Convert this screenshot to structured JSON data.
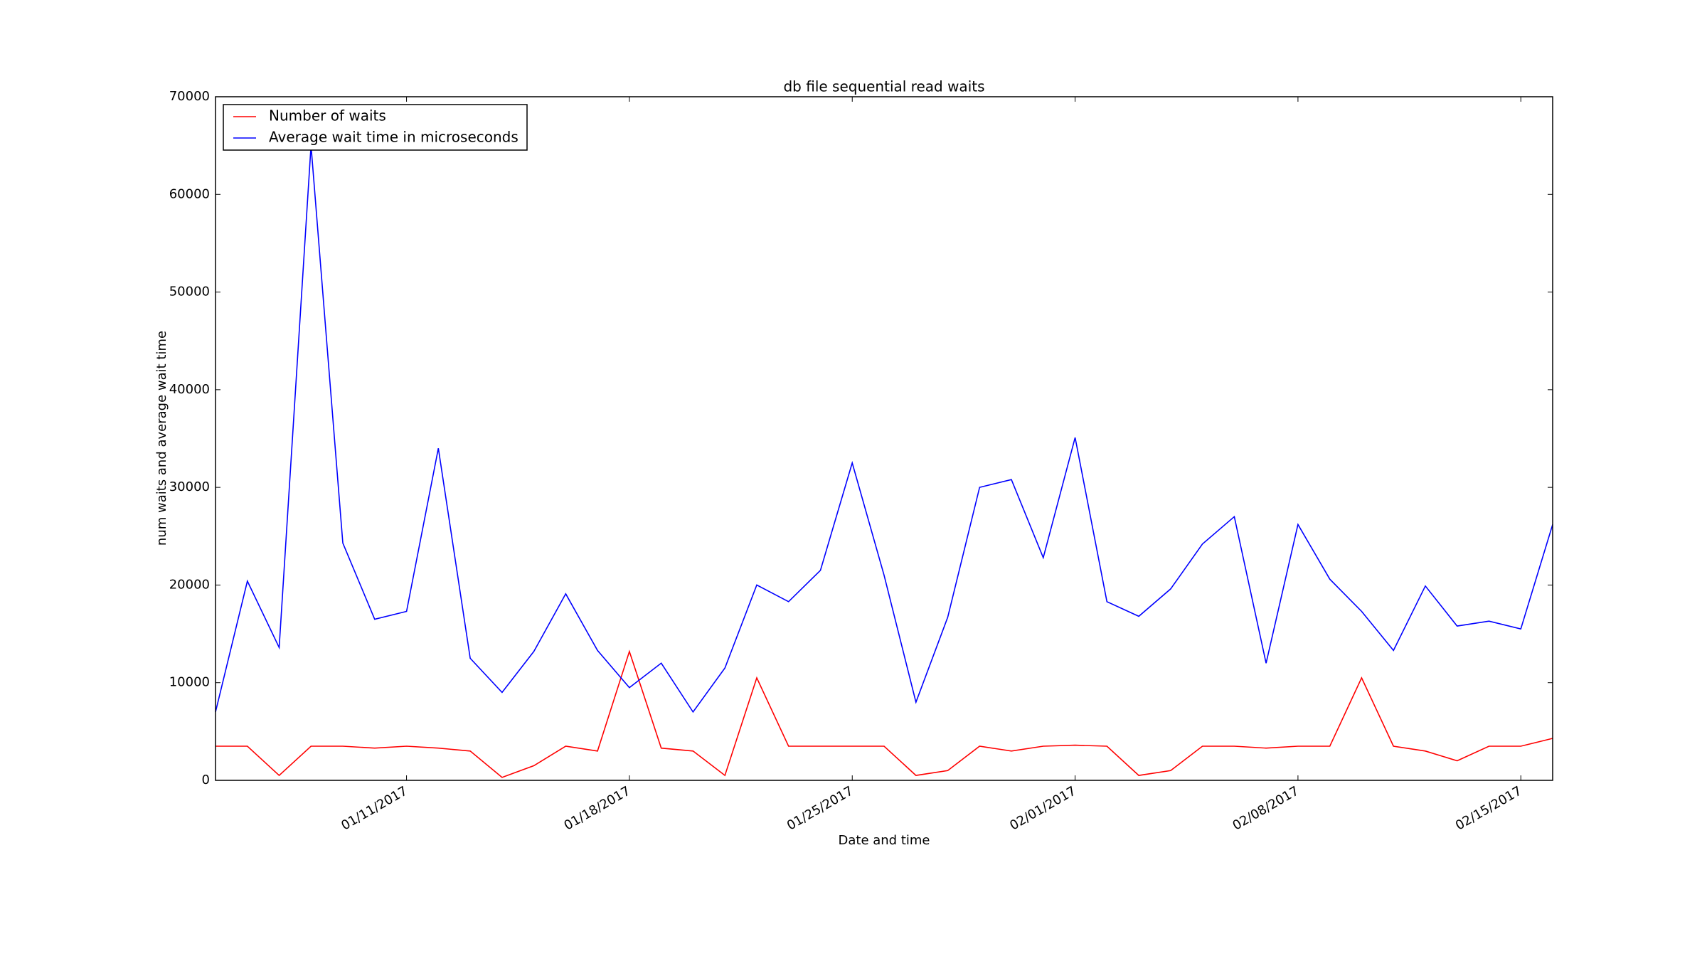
{
  "chart_data": {
    "type": "line",
    "title": "db file sequential read waits",
    "x_label": "Date and time",
    "y_label": "num waits and average wait time",
    "x": [
      "2017-01-05",
      "2017-01-06",
      "2017-01-07",
      "2017-01-08",
      "2017-01-09",
      "2017-01-10",
      "2017-01-11",
      "2017-01-12",
      "2017-01-13",
      "2017-01-14",
      "2017-01-15",
      "2017-01-16",
      "2017-01-17",
      "2017-01-18",
      "2017-01-19",
      "2017-01-20",
      "2017-01-21",
      "2017-01-22",
      "2017-01-23",
      "2017-01-24",
      "2017-01-25",
      "2017-01-26",
      "2017-01-27",
      "2017-01-28",
      "2017-01-29",
      "2017-01-30",
      "2017-01-31",
      "2017-02-01",
      "2017-02-02",
      "2017-02-03",
      "2017-02-04",
      "2017-02-05",
      "2017-02-06",
      "2017-02-07",
      "2017-02-08",
      "2017-02-09",
      "2017-02-10",
      "2017-02-11",
      "2017-02-12",
      "2017-02-13",
      "2017-02-14",
      "2017-02-15",
      "2017-02-16"
    ],
    "series": [
      {
        "name": "Number of waits",
        "color": "#ff0000",
        "values": [
          3500,
          3500,
          500,
          3500,
          3500,
          3300,
          3500,
          3300,
          3000,
          300,
          1500,
          3500,
          3000,
          13200,
          3300,
          3000,
          500,
          10500,
          3500,
          3500,
          3500,
          3500,
          500,
          1000,
          3500,
          3000,
          3500,
          3600,
          3500,
          500,
          1000,
          3500,
          3500,
          3300,
          3500,
          3500,
          10500,
          3500,
          3000,
          2000,
          3500,
          3500,
          4300
        ]
      },
      {
        "name": "Average wait time in microseconds",
        "color": "#0000ff",
        "values": [
          7000,
          20400,
          13600,
          65000,
          24300,
          16500,
          17300,
          34000,
          12500,
          9000,
          13200,
          19100,
          13300,
          9500,
          12000,
          7000,
          11500,
          20000,
          18300,
          21500,
          32500,
          21000,
          8000,
          16700,
          30000,
          30800,
          22800,
          35100,
          18300,
          16800,
          19600,
          24200,
          27000,
          12000,
          26200,
          20600,
          17300,
          13300,
          19900,
          15800,
          16300,
          15500,
          26200
        ]
      }
    ],
    "xlim": [
      "2017-01-05",
      "2017-02-16"
    ],
    "xticks": [
      {
        "value": "2017-01-11",
        "label": "01/11/2017"
      },
      {
        "value": "2017-01-18",
        "label": "01/18/2017"
      },
      {
        "value": "2017-01-25",
        "label": "01/25/2017"
      },
      {
        "value": "2017-02-01",
        "label": "02/01/2017"
      },
      {
        "value": "2017-02-08",
        "label": "02/08/2017"
      },
      {
        "value": "2017-02-15",
        "label": "02/15/2017"
      }
    ],
    "ylim": [
      0,
      70000
    ],
    "yticks": [
      0,
      10000,
      20000,
      30000,
      40000,
      50000,
      60000,
      70000
    ],
    "grid": false,
    "legend": "upper left"
  }
}
